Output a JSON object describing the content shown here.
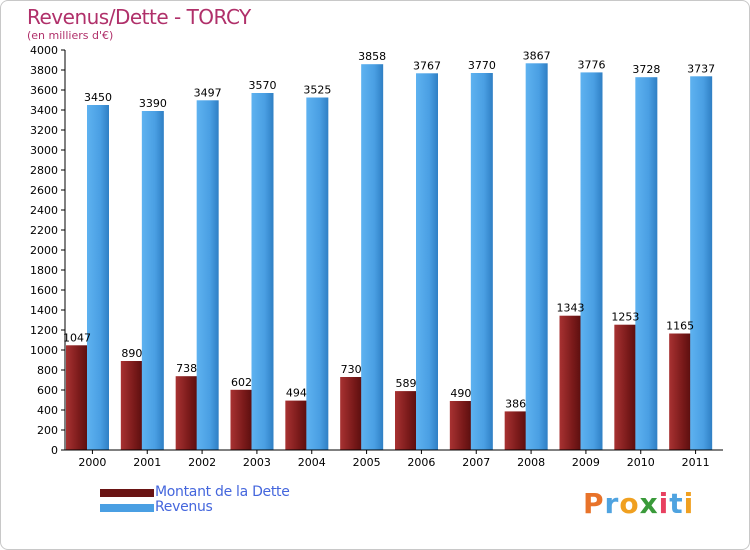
{
  "title": "Revenus/Dette - TORCY",
  "subtitle": "(en milliers d'€)",
  "colors": {
    "title": "#b0306a",
    "debt": "#7a1a1a",
    "revenue": "#4a9fe3",
    "legend_text": "#4466dd"
  },
  "chart_data": {
    "type": "bar",
    "categories": [
      "2000",
      "2001",
      "2002",
      "2003",
      "2004",
      "2005",
      "2006",
      "2007",
      "2008",
      "2009",
      "2010",
      "2011"
    ],
    "series": [
      {
        "name": "Montant de la Dette",
        "values": [
          1047,
          890,
          738,
          602,
          494,
          730,
          589,
          490,
          386,
          1343,
          1253,
          1165
        ]
      },
      {
        "name": "Revenus",
        "values": [
          3450,
          3390,
          3497,
          3570,
          3525,
          3858,
          3767,
          3770,
          3867,
          3776,
          3728,
          3737
        ]
      }
    ],
    "ylim": [
      0,
      4000
    ],
    "ytick_step": 200,
    "grid": false,
    "legend_position": "bottom-left"
  },
  "logo": {
    "text": "Proxiti",
    "letters": [
      "P",
      "r",
      "o",
      "x",
      "i",
      "t",
      "i"
    ]
  }
}
